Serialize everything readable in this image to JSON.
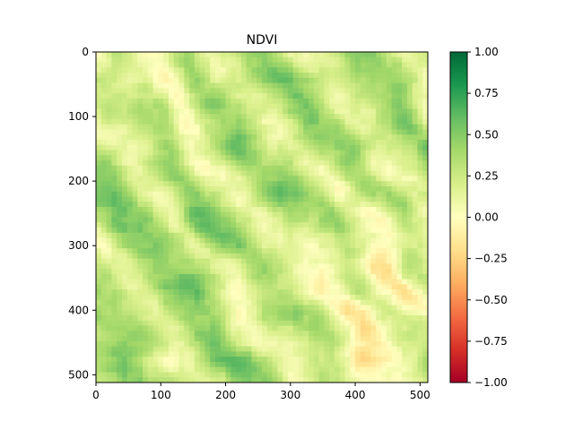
{
  "chart_data": {
    "type": "heatmap",
    "title": "NDVI",
    "xlabel": "",
    "ylabel": "",
    "image_size": [
      512,
      512
    ],
    "x_ticks": [
      0,
      100,
      200,
      300,
      400,
      500
    ],
    "y_ticks": [
      0,
      100,
      200,
      300,
      400,
      500
    ],
    "xlim": [
      0,
      512
    ],
    "ylim": [
      512,
      0
    ],
    "colormap": "RdYlGn",
    "colorbar": {
      "range": [
        -1.0,
        1.0
      ],
      "ticks": [
        -1.0,
        -0.75,
        -0.5,
        -0.25,
        0.0,
        0.25,
        0.5,
        0.75,
        1.0
      ],
      "tick_labels": [
        "−1.00",
        "−0.75",
        "−0.50",
        "−0.25",
        "0.00",
        "0.25",
        "0.50",
        "0.75",
        "1.00"
      ],
      "colors": [
        "#a50026",
        "#d73027",
        "#f46d43",
        "#fdae61",
        "#fee08b",
        "#ffffbf",
        "#d9ef8b",
        "#a6d96a",
        "#66bd63",
        "#1a9850",
        "#006837"
      ]
    },
    "value_range_observed": [
      -0.3,
      0.8
    ],
    "grid": false,
    "legend": "colorbar-right"
  }
}
